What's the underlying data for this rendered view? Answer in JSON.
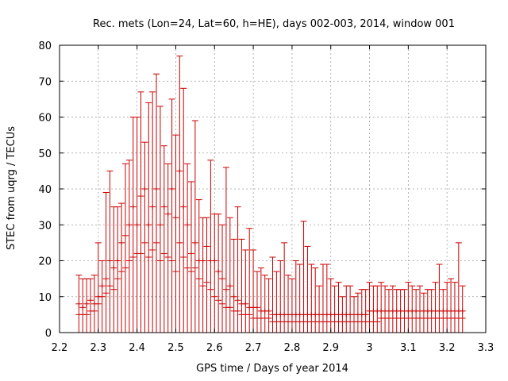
{
  "chart_data": {
    "type": "scatter",
    "title": "Rec. mets (Lon=24, Lat=60, h=HE), days 002-003, 2014, window 001",
    "xlabel": "GPS time / Days of year 2014",
    "ylabel": "STEC from uqrg / TECUs",
    "xlim": [
      2.2,
      3.3
    ],
    "ylim": [
      0,
      80
    ],
    "xticks": [
      "2.2",
      "2.3",
      "2.4",
      "2.5",
      "2.6",
      "2.7",
      "2.8",
      "2.9",
      "3",
      "3.1",
      "3.2",
      "3.3"
    ],
    "yticks": [
      "0",
      "10",
      "20",
      "30",
      "40",
      "50",
      "60",
      "70",
      "80"
    ],
    "grid": true,
    "series": [
      {
        "color": "#cc0000",
        "x": [
          2.25,
          2.26,
          2.27,
          2.28,
          2.29,
          2.3,
          2.31,
          2.32,
          2.33,
          2.34,
          2.35,
          2.36,
          2.37,
          2.38,
          2.39,
          2.4,
          2.41,
          2.42,
          2.43,
          2.44,
          2.45,
          2.46,
          2.47,
          2.48,
          2.49,
          2.5,
          2.51,
          2.52,
          2.53,
          2.54,
          2.55,
          2.56,
          2.57,
          2.58,
          2.59,
          2.6,
          2.61,
          2.62,
          2.63,
          2.64,
          2.65,
          2.66,
          2.67,
          2.68,
          2.69,
          2.7,
          2.71,
          2.72,
          2.73,
          2.74,
          2.75,
          2.76,
          2.77,
          2.78,
          2.79,
          2.8,
          2.81,
          2.82,
          2.83,
          2.84,
          2.85,
          2.86,
          2.87,
          2.88,
          2.89,
          2.9,
          2.91,
          2.92,
          2.93,
          2.94,
          2.95,
          2.96,
          2.97,
          2.98,
          2.99,
          3.0,
          3.01,
          3.02,
          3.03,
          3.04,
          3.05,
          3.06,
          3.07,
          3.08,
          3.09,
          3.1,
          3.11,
          3.12,
          3.13,
          3.14,
          3.15,
          3.16,
          3.17,
          3.18,
          3.19,
          3.2,
          3.21,
          3.22,
          3.23,
          3.24
        ],
        "y": [
          8,
          7,
          8,
          9,
          8,
          10,
          13,
          15,
          20,
          18,
          20,
          25,
          27,
          30,
          35,
          30,
          38,
          40,
          30,
          35,
          40,
          30,
          35,
          33,
          40,
          32,
          45,
          35,
          30,
          22,
          25,
          20,
          20,
          24,
          20,
          20,
          17,
          15,
          12,
          13,
          10,
          9,
          8,
          8,
          7,
          7,
          7,
          6,
          6,
          6,
          5,
          5,
          5,
          5,
          5,
          5,
          5,
          5,
          5,
          5,
          5,
          5,
          5,
          5,
          5,
          5,
          5,
          5,
          5,
          5,
          5,
          5,
          5,
          5,
          5,
          6,
          6,
          6,
          6,
          6,
          6,
          6,
          6,
          6,
          6,
          6,
          6,
          6,
          6,
          6,
          6,
          6,
          6,
          6,
          6,
          6,
          6,
          6,
          6,
          6
        ],
        "y_high": [
          16,
          15,
          15,
          15,
          16,
          25,
          20,
          39,
          45,
          35,
          35,
          36,
          47,
          48,
          60,
          60,
          67,
          53,
          64,
          67,
          72,
          63,
          52,
          47,
          65,
          55,
          77,
          68,
          47,
          42,
          59,
          37,
          32,
          32,
          48,
          33,
          33,
          30,
          46,
          32,
          26,
          35,
          26,
          23,
          29,
          23,
          17,
          18,
          16,
          15,
          21,
          17,
          20,
          25,
          16,
          15,
          20,
          19,
          31,
          24,
          19,
          18,
          13,
          19,
          19,
          15,
          13,
          14,
          10,
          13,
          13,
          10,
          11,
          12,
          12,
          14,
          13,
          13,
          14,
          13,
          12,
          13,
          12,
          12,
          12,
          14,
          13,
          12,
          13,
          11,
          12,
          12,
          14,
          19,
          12,
          14,
          15,
          14,
          25,
          13
        ],
        "y_low": [
          5,
          5,
          5,
          6,
          6,
          8,
          10,
          11,
          13,
          12,
          15,
          17,
          18,
          20,
          21,
          22,
          22,
          25,
          21,
          23,
          25,
          20,
          22,
          21,
          20,
          17,
          25,
          21,
          18,
          17,
          18,
          15,
          13,
          14,
          12,
          10,
          9,
          8,
          7,
          7,
          6,
          6,
          5,
          5,
          5,
          4,
          4,
          4,
          4,
          4,
          3,
          3,
          3,
          3,
          3,
          3,
          3,
          3,
          3,
          3,
          3,
          3,
          3,
          3,
          3,
          3,
          3,
          3,
          3,
          3,
          3,
          3,
          3,
          3,
          3,
          3,
          3,
          3,
          4,
          4,
          4,
          4,
          4,
          4,
          4,
          4,
          4,
          4,
          4,
          4,
          4,
          4,
          4,
          4,
          4,
          4,
          4,
          4,
          4,
          4
        ]
      }
    ]
  }
}
